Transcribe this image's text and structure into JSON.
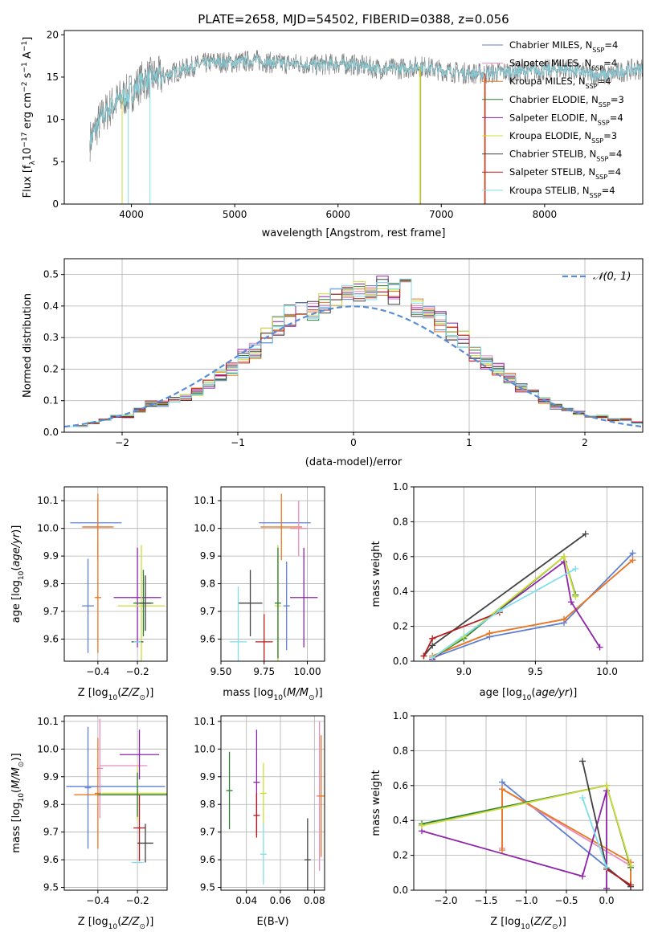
{
  "figure": {
    "title": "PLATE=2658, MJD=54502, FIBERID=0388, z=0.056"
  },
  "chart_data": [
    {
      "id": "spectrum",
      "type": "line",
      "title": "PLATE=2658, MJD=54502, FIBERID=0388, z=0.056",
      "xlabel": "wavelength [Angstrom, rest frame]",
      "ylabel": "Flux [f_λ10^−17 erg cm^−2 s^−1 A^−1]",
      "xlim": [
        3350,
        8950
      ],
      "ylim": [
        0,
        20.5
      ],
      "xticks": [
        4000,
        5000,
        6000,
        7000,
        8000
      ],
      "yticks": [
        0,
        5,
        10,
        15,
        20
      ],
      "grid": false,
      "legend_position": "upper-right",
      "data_color": "#7f7f7f",
      "model_color": "#7fd4dc",
      "continuum": [
        [
          3600,
          7.5
        ],
        [
          3700,
          10
        ],
        [
          3800,
          11.5
        ],
        [
          3900,
          12.5
        ],
        [
          4000,
          13.2
        ],
        [
          4100,
          14.5
        ],
        [
          4200,
          15
        ],
        [
          4300,
          15
        ],
        [
          4400,
          15.5
        ],
        [
          4600,
          16.3
        ],
        [
          4800,
          16.8
        ],
        [
          5000,
          16.7
        ],
        [
          5200,
          17
        ],
        [
          5400,
          16.6
        ],
        [
          5600,
          16.6
        ],
        [
          5800,
          16.4
        ],
        [
          6000,
          16.6
        ],
        [
          6200,
          16.4
        ],
        [
          6400,
          16
        ],
        [
          6600,
          16
        ],
        [
          6800,
          16.3
        ],
        [
          7000,
          15.8
        ],
        [
          7200,
          15.5
        ],
        [
          7400,
          15.4
        ],
        [
          7600,
          15.6
        ],
        [
          7800,
          15.7
        ],
        [
          8000,
          15.8
        ],
        [
          8200,
          16
        ],
        [
          8400,
          15.4
        ],
        [
          8600,
          15.2
        ],
        [
          8800,
          15.8
        ],
        [
          8950,
          16
        ]
      ],
      "series": [
        {
          "name": "Chabrier MILES, N_SSP=4",
          "color": "#5f7fd0",
          "end": 7420
        },
        {
          "name": "Salpeter MILES, N_SSP=4",
          "color": "#e98bc0",
          "end": 7420
        },
        {
          "name": "Kroupa MILES, N_SSP=4",
          "color": "#e87820",
          "end": 7420
        },
        {
          "name": "Chabrier ELODIE, N_SSP=3",
          "color": "#2e7d32",
          "end": 6800
        },
        {
          "name": "Salpeter ELODIE, N_SSP=4",
          "color": "#8e24aa",
          "end": 6800
        },
        {
          "name": "Kroupa ELODIE, N_SSP=3",
          "color": "#cddc39",
          "end": 6800
        },
        {
          "name": "Chabrier STELIB, N_SSP=4",
          "color": "#424242",
          "end": 8950
        },
        {
          "name": "Salpeter STELIB, N_SSP=4",
          "color": "#b71c1c",
          "end": 8950
        },
        {
          "name": "Kroupa STELIB, N_SSP=4",
          "color": "#80deea",
          "end": 8950
        }
      ]
    },
    {
      "id": "residuals",
      "type": "line",
      "xlabel": "(data-model)/error",
      "ylabel": "Normed distribution",
      "xlim": [
        -2.5,
        2.5
      ],
      "ylim": [
        0,
        0.55
      ],
      "xticks": [
        -2,
        -1,
        0,
        1,
        2
      ],
      "yticks": [
        0.0,
        0.1,
        0.2,
        0.3,
        0.4,
        0.5
      ],
      "grid": true,
      "legend_position": "upper-right",
      "reference": {
        "name": "𝒩(0, 1)",
        "color": "#5b8dd6"
      },
      "series_colors": [
        "#5f7fd0",
        "#e98bc0",
        "#e87820",
        "#2e7d32",
        "#8e24aa",
        "#cddc39",
        "#424242",
        "#b71c1c",
        "#80deea"
      ],
      "bins": [
        -2.5,
        -2.4,
        -2.3,
        -2.2,
        -2.1,
        -2.0,
        -1.9,
        -1.8,
        -1.7,
        -1.6,
        -1.5,
        -1.4,
        -1.3,
        -1.2,
        -1.1,
        -1.0,
        -0.9,
        -0.8,
        -0.7,
        -0.6,
        -0.5,
        -0.4,
        -0.3,
        -0.2,
        -0.1,
        0.0,
        0.1,
        0.2,
        0.3,
        0.4,
        0.5,
        0.6,
        0.7,
        0.8,
        0.9,
        1.0,
        1.1,
        1.2,
        1.3,
        1.4,
        1.5,
        1.6,
        1.7,
        1.8,
        1.9,
        2.0,
        2.1,
        2.2,
        2.3,
        2.4,
        2.5
      ],
      "hist": [
        0.02,
        0.02,
        0.03,
        0.04,
        0.05,
        0.05,
        0.07,
        0.09,
        0.09,
        0.1,
        0.11,
        0.13,
        0.15,
        0.18,
        0.2,
        0.24,
        0.26,
        0.3,
        0.34,
        0.37,
        0.38,
        0.38,
        0.41,
        0.43,
        0.44,
        0.45,
        0.44,
        0.46,
        0.44,
        0.46,
        0.4,
        0.39,
        0.35,
        0.32,
        0.3,
        0.25,
        0.22,
        0.2,
        0.17,
        0.14,
        0.13,
        0.1,
        0.08,
        0.07,
        0.06,
        0.05,
        0.05,
        0.04,
        0.04,
        0.03
      ]
    },
    {
      "id": "z-age",
      "type": "scatter",
      "xlabel": "Z [log10(Z/Z⊙)]",
      "ylabel": "age [log10(age/yr)]",
      "xlim": [
        -0.57,
        -0.05
      ],
      "ylim": [
        9.52,
        10.15
      ],
      "xticks": [
        -0.4,
        -0.2
      ],
      "yticks": [
        9.6,
        9.7,
        9.8,
        9.9,
        10.0,
        10.1
      ],
      "grid": true,
      "points": [
        {
          "x": -0.41,
          "y": 10.02,
          "xerr": 0.13,
          "yerr": 0.0,
          "color": "#5f7fd0"
        },
        {
          "x": -0.45,
          "y": 9.72,
          "xerr": 0.03,
          "yerr": 0.17,
          "color": "#5f7fd0"
        },
        {
          "x": -0.4,
          "y": 10.005,
          "xerr": 0.07,
          "yerr": 0.1,
          "color": "#e98bc0"
        },
        {
          "x": -0.4,
          "y": 10.005,
          "xerr": 0.08,
          "yerr": 0.12,
          "color": "#e87820"
        },
        {
          "x": -0.4,
          "y": 9.75,
          "xerr": 0.0,
          "yerr": 0.2,
          "color": "#e87820"
        },
        {
          "x": -0.2,
          "y": 9.75,
          "xerr": 0.12,
          "yerr": 0.18,
          "color": "#8e24aa"
        },
        {
          "x": -0.18,
          "y": 9.72,
          "xerr": 0.12,
          "yerr": 0.22,
          "color": "#cddc39"
        },
        {
          "x": -0.17,
          "y": 9.73,
          "xerr": 0.05,
          "yerr": 0.12,
          "color": "#2e7d32"
        },
        {
          "x": -0.16,
          "y": 9.73,
          "xerr": 0.03,
          "yerr": 0.1,
          "color": "#424242"
        },
        {
          "x": -0.2,
          "y": 9.59,
          "xerr": 0.03,
          "yerr": 0.0,
          "color": "#424242"
        },
        {
          "x": -0.2,
          "y": 9.59,
          "xerr": 0.02,
          "yerr": 0.0,
          "color": "#80deea"
        }
      ]
    },
    {
      "id": "mass-age",
      "type": "scatter",
      "xlabel": "mass [log10(M/M⊙)]",
      "ylabel": "",
      "xlim": [
        9.5,
        10.1
      ],
      "ylim": [
        9.52,
        10.15
      ],
      "xticks": [
        9.5,
        9.75,
        10.0
      ],
      "ytick_labels": [
        9.6,
        9.7,
        9.8,
        9.9,
        10.0,
        10.1
      ],
      "grid": true,
      "points": [
        {
          "x": 9.87,
          "y": 10.02,
          "xerr": 0.15,
          "yerr": 0.0,
          "color": "#5f7fd0"
        },
        {
          "x": 9.88,
          "y": 9.72,
          "xerr": 0.0,
          "yerr": 0.16,
          "color": "#5f7fd0"
        },
        {
          "x": 9.85,
          "y": 10.005,
          "xerr": 0.12,
          "yerr": 0.12,
          "color": "#e87820"
        },
        {
          "x": 9.95,
          "y": 10.0,
          "xerr": 0.05,
          "yerr": 0.1,
          "color": "#e98bc0"
        },
        {
          "x": 9.98,
          "y": 9.75,
          "xerr": 0.08,
          "yerr": 0.18,
          "color": "#8e24aa"
        },
        {
          "x": 9.83,
          "y": 9.72,
          "xerr": 0.0,
          "yerr": 0.22,
          "color": "#cddc39"
        },
        {
          "x": 9.83,
          "y": 9.73,
          "xerr": 0.0,
          "yerr": 0.2,
          "color": "#2e7d32"
        },
        {
          "x": 9.67,
          "y": 9.73,
          "xerr": 0.07,
          "yerr": 0.12,
          "color": "#424242"
        },
        {
          "x": 9.75,
          "y": 9.59,
          "xerr": 0.05,
          "yerr": 0.1,
          "color": "#b71c1c"
        },
        {
          "x": 9.6,
          "y": 9.59,
          "xerr": 0.05,
          "yerr": 0.2,
          "color": "#80deea"
        }
      ]
    },
    {
      "id": "age-weight",
      "type": "line",
      "xlabel": "age [log10(age/yr)]",
      "ylabel": "mass weight",
      "xlim": [
        8.65,
        10.25
      ],
      "ylim": [
        0,
        1.0
      ],
      "xticks": [
        9.0,
        9.5,
        10.0
      ],
      "yticks": [
        0.0,
        0.2,
        0.4,
        0.6,
        0.8,
        1.0
      ],
      "grid": true,
      "series": [
        {
          "color": "#5f7fd0",
          "points": [
            [
              8.78,
              0.02
            ],
            [
              9.18,
              0.14
            ],
            [
              9.7,
              0.22
            ],
            [
              10.18,
              0.62
            ]
          ]
        },
        {
          "color": "#e98bc0",
          "points": [
            [
              8.78,
              0.03
            ],
            [
              9.18,
              0.16
            ],
            [
              9.7,
              0.24
            ],
            [
              10.18,
              0.58
            ]
          ]
        },
        {
          "color": "#e87820",
          "points": [
            [
              8.78,
              0.03
            ],
            [
              9.18,
              0.16
            ],
            [
              9.7,
              0.24
            ],
            [
              10.18,
              0.58
            ]
          ]
        },
        {
          "color": "#8e24aa",
          "points": [
            [
              8.78,
              0.01
            ],
            [
              9.7,
              0.57
            ],
            [
              9.75,
              0.34
            ],
            [
              9.95,
              0.08
            ]
          ]
        },
        {
          "color": "#2e7d32",
          "points": [
            [
              8.78,
              0.02
            ],
            [
              9.0,
              0.13
            ],
            [
              9.7,
              0.6
            ],
            [
              9.78,
              0.38
            ]
          ]
        },
        {
          "color": "#cddc39",
          "points": [
            [
              8.78,
              0.02
            ],
            [
              9.0,
              0.14
            ],
            [
              9.7,
              0.6
            ],
            [
              9.78,
              0.37
            ]
          ]
        },
        {
          "color": "#424242",
          "points": [
            [
              8.72,
              0.03
            ],
            [
              8.78,
              0.09
            ],
            [
              9.85,
              0.73
            ]
          ]
        },
        {
          "color": "#b71c1c",
          "points": [
            [
              8.72,
              0.03
            ],
            [
              8.78,
              0.13
            ],
            [
              9.25,
              0.28
            ]
          ]
        },
        {
          "color": "#80deea",
          "points": [
            [
              8.78,
              0.02
            ],
            [
              9.25,
              0.29
            ],
            [
              9.78,
              0.53
            ]
          ]
        }
      ]
    },
    {
      "id": "z-mass",
      "type": "scatter",
      "xlabel": "Z [log10(Z/Z⊙)]",
      "ylabel": "mass [log10(M/M⊙)]",
      "xlim": [
        -0.57,
        -0.05
      ],
      "ylim": [
        9.49,
        10.12
      ],
      "xticks": [
        -0.4,
        -0.2
      ],
      "yticks": [
        9.5,
        9.6,
        9.7,
        9.8,
        9.9,
        10.0,
        10.1
      ],
      "grid": true,
      "points": [
        {
          "x": -0.45,
          "y": 9.86,
          "xerr": 0.0,
          "yerr": 0.22,
          "color": "#5f7fd0"
        },
        {
          "x": -0.31,
          "y": 9.865,
          "xerr": 0.25,
          "yerr": 0.0,
          "color": "#5f7fd0"
        },
        {
          "x": -0.39,
          "y": 9.93,
          "xerr": 0.0,
          "yerr": 0.18,
          "color": "#e98bc0"
        },
        {
          "x": -0.27,
          "y": 9.94,
          "xerr": 0.12,
          "yerr": 0.0,
          "color": "#e98bc0"
        },
        {
          "x": -0.4,
          "y": 9.84,
          "xerr": 0.0,
          "yerr": 0.2,
          "color": "#e87820"
        },
        {
          "x": -0.28,
          "y": 9.835,
          "xerr": 0.24,
          "yerr": 0.0,
          "color": "#e87820"
        },
        {
          "x": -0.19,
          "y": 9.98,
          "xerr": 0.1,
          "yerr": 0.09,
          "color": "#8e24aa"
        },
        {
          "x": -0.2,
          "y": 9.84,
          "xerr": 0.18,
          "yerr": 0.1,
          "color": "#cddc39"
        },
        {
          "x": -0.2,
          "y": 9.835,
          "xerr": 0.2,
          "yerr": 0.08,
          "color": "#2e7d32"
        },
        {
          "x": -0.19,
          "y": 9.715,
          "xerr": 0.03,
          "yerr": 0.12,
          "color": "#b71c1c"
        },
        {
          "x": -0.16,
          "y": 9.66,
          "xerr": 0.04,
          "yerr": 0.07,
          "color": "#424242"
        },
        {
          "x": -0.2,
          "y": 9.59,
          "xerr": 0.03,
          "yerr": 0.0,
          "color": "#80deea"
        }
      ]
    },
    {
      "id": "ebv-mass",
      "type": "scatter",
      "xlabel": "E(B-V)",
      "ylabel": "",
      "xlim": [
        0.025,
        0.086
      ],
      "ylim": [
        9.49,
        10.12
      ],
      "xticks": [
        0.04,
        0.06,
        0.08
      ],
      "ytick_labels": [
        9.5,
        9.6,
        9.7,
        9.8,
        9.9,
        10.0,
        10.1
      ],
      "grid": true,
      "points": [
        {
          "x": 0.03,
          "y": 9.85,
          "xerr": 0.0,
          "yerr": 0.14,
          "color": "#2e7d32"
        },
        {
          "x": 0.046,
          "y": 9.88,
          "xerr": 0.0,
          "yerr": 0.19,
          "color": "#8e24aa"
        },
        {
          "x": 0.046,
          "y": 9.76,
          "xerr": 0.0,
          "yerr": 0.08,
          "color": "#b71c1c"
        },
        {
          "x": 0.05,
          "y": 9.84,
          "xerr": 0.0,
          "yerr": 0.11,
          "color": "#cddc39"
        },
        {
          "x": 0.05,
          "y": 9.62,
          "xerr": 0.0,
          "yerr": 0.11,
          "color": "#80deea"
        },
        {
          "x": 0.076,
          "y": 9.6,
          "xerr": 0.0,
          "yerr": 0.15,
          "color": "#424242"
        },
        {
          "x": 0.083,
          "y": 9.83,
          "xerr": 0.0,
          "yerr": 0.27,
          "color": "#e98bc0"
        },
        {
          "x": 0.084,
          "y": 9.83,
          "xerr": 0.0,
          "yerr": 0.22,
          "color": "#e87820"
        }
      ]
    },
    {
      "id": "z-weight",
      "type": "line",
      "xlabel": "Z [log10(Z/Z⊙)]",
      "ylabel": "mass weight",
      "xlim": [
        -2.4,
        0.45
      ],
      "ylim": [
        0,
        1.0
      ],
      "xticks": [
        -2.0,
        -1.5,
        -1.0,
        -0.5,
        0.0
      ],
      "yticks": [
        0.0,
        0.2,
        0.4,
        0.6,
        0.8,
        1.0
      ],
      "grid": true,
      "series": [
        {
          "color": "#5f7fd0",
          "points": [
            [
              -1.3,
              0.62
            ],
            [
              0.3,
              0.02
            ]
          ]
        },
        {
          "color": "#e98bc0",
          "points": [
            [
              -1.3,
              0.24
            ],
            [
              -1.3,
              0.58
            ],
            [
              0.3,
              0.14
            ],
            [
              0.3,
              0.03
            ]
          ]
        },
        {
          "color": "#e87820",
          "points": [
            [
              -1.3,
              0.23
            ],
            [
              -1.3,
              0.58
            ],
            [
              0.3,
              0.16
            ],
            [
              0.3,
              0.03
            ]
          ]
        },
        {
          "color": "#8e24aa",
          "points": [
            [
              -2.3,
              0.34
            ],
            [
              -0.3,
              0.08
            ],
            [
              0.0,
              0.57
            ],
            [
              0.0,
              0.01
            ]
          ]
        },
        {
          "color": "#2e7d32",
          "points": [
            [
              -2.3,
              0.38
            ],
            [
              0.0,
              0.6
            ],
            [
              0.3,
              0.13
            ]
          ]
        },
        {
          "color": "#cddc39",
          "points": [
            [
              -2.3,
              0.37
            ],
            [
              0.0,
              0.6
            ],
            [
              0.3,
              0.14
            ]
          ]
        },
        {
          "color": "#424242",
          "points": [
            [
              -0.3,
              0.74
            ],
            [
              0.0,
              0.13
            ],
            [
              0.3,
              0.02
            ]
          ]
        },
        {
          "color": "#b71c1c",
          "points": [
            [
              0.0,
              0.12
            ],
            [
              0.3,
              0.03
            ]
          ]
        },
        {
          "color": "#80deea",
          "points": [
            [
              -0.3,
              0.53
            ],
            [
              0.0,
              0.13
            ]
          ]
        }
      ]
    }
  ]
}
